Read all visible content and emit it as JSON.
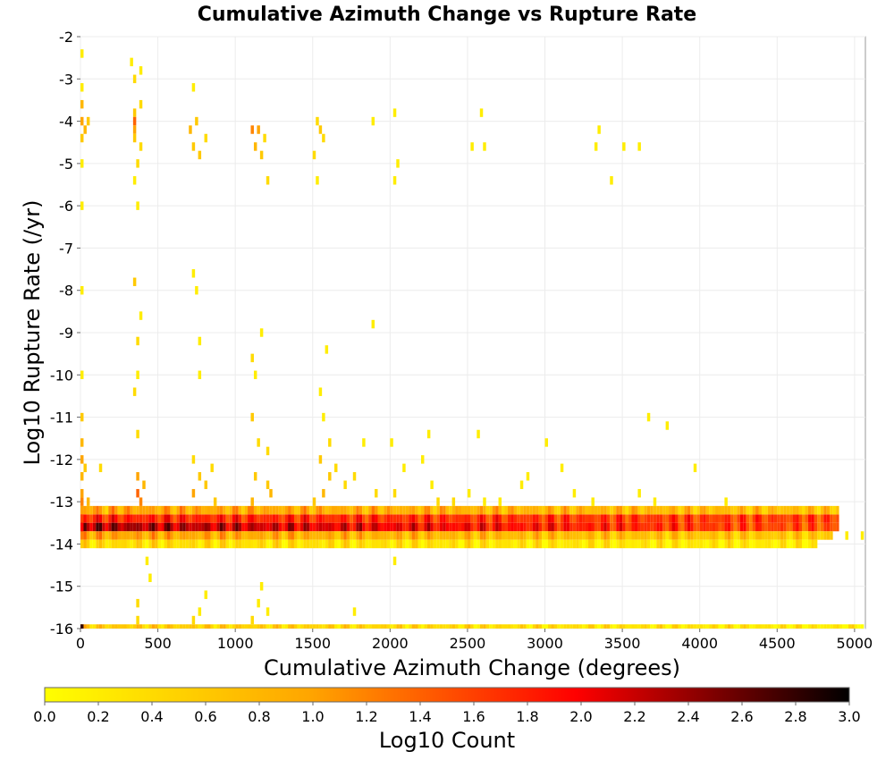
{
  "chart_data": {
    "type": "heatmap",
    "title": "Cumulative Azimuth Change vs Rupture Rate",
    "xlabel": "Cumulative Azimuth Change (degrees)",
    "ylabel": "Log10 Rupture Rate (/yr)",
    "xlim": [
      0,
      5070
    ],
    "ylim": [
      -16,
      -2
    ],
    "xticks": [
      0,
      500,
      1000,
      1500,
      2000,
      2500,
      3000,
      3500,
      4000,
      4500,
      5000
    ],
    "yticks": [
      -16,
      -15,
      -14,
      -13,
      -12,
      -11,
      -10,
      -9,
      -8,
      -7,
      -6,
      -5,
      -4,
      -3,
      -2
    ],
    "grid": true,
    "colorbar": {
      "label": "Log10 Count",
      "range": [
        0,
        3
      ],
      "ticks": [
        0.0,
        0.2,
        0.4,
        0.6,
        0.8,
        1.0,
        1.2,
        1.4,
        1.6,
        1.8,
        2.0,
        2.2,
        2.4,
        2.6,
        2.8,
        3.0
      ],
      "tick_labels": [
        "0.0",
        "0.2",
        "0.4",
        "0.6",
        "0.8",
        "1.0",
        "1.2",
        "1.4",
        "1.6",
        "1.8",
        "2.0",
        "2.2",
        "2.4",
        "2.6",
        "2.8",
        "3.0"
      ],
      "colors": [
        "#ffff00",
        "#ffa500",
        "#ff0000",
        "#000000"
      ],
      "placement": "bottom"
    },
    "bin_width_x": 20,
    "bin_height_y": 0.2,
    "bands": [
      {
        "x_start": 0,
        "x_end": 4900,
        "y": -13.4,
        "value_start": 1.8,
        "value_end": 1.6
      },
      {
        "x_start": 0,
        "x_end": 4900,
        "y": -13.6,
        "value_start": 2.4,
        "value_end": 1.5
      },
      {
        "x_start": 0,
        "x_end": 4900,
        "y": -13.2,
        "value_start": 1.0,
        "value_end": 0.7
      },
      {
        "x_start": 0,
        "x_end": 4850,
        "y": -13.8,
        "value_start": 1.0,
        "value_end": 0.6
      },
      {
        "x_start": 0,
        "x_end": 4750,
        "y": -14.0,
        "value_start": 0.4,
        "value_end": 0.2
      },
      {
        "x_start": 0,
        "x_end": 5050,
        "y": -16.0,
        "value_start": 0.6,
        "value_end": 0.2
      }
    ],
    "cells": [
      [
        0,
        -13.4,
        1.6
      ],
      [
        0,
        -13.6,
        2.0
      ],
      [
        0,
        -13.0,
        1.2
      ],
      [
        0,
        -12.8,
        1.0
      ],
      [
        0,
        -12.4,
        0.8
      ],
      [
        0,
        -16.0,
        2.8
      ],
      [
        0,
        -4.0,
        1.0
      ],
      [
        0,
        -3.6,
        0.8
      ],
      [
        0,
        -4.4,
        0.6
      ],
      [
        0,
        -3.2,
        0.2
      ],
      [
        0,
        -2.4,
        0.2
      ],
      [
        0,
        -5.0,
        0.2
      ],
      [
        0,
        -6.0,
        0.2
      ],
      [
        0,
        -8.0,
        0.2
      ],
      [
        0,
        -10.0,
        0.2
      ],
      [
        0,
        -11.0,
        0.6
      ],
      [
        0,
        -11.6,
        0.8
      ],
      [
        0,
        -12.0,
        1.0
      ],
      [
        20,
        -4.2,
        0.8
      ],
      [
        20,
        -12.2,
        0.6
      ],
      [
        40,
        -13.0,
        0.8
      ],
      [
        40,
        -4.0,
        0.6
      ],
      [
        120,
        -12.2,
        0.4
      ],
      [
        160,
        -13.2,
        0.4
      ],
      [
        320,
        -2.6,
        0.2
      ],
      [
        340,
        -3.0,
        0.4
      ],
      [
        340,
        -3.8,
        0.6
      ],
      [
        340,
        -4.0,
        1.4
      ],
      [
        340,
        -4.2,
        1.0
      ],
      [
        340,
        -4.4,
        0.6
      ],
      [
        340,
        -5.4,
        0.2
      ],
      [
        360,
        -5.0,
        0.4
      ],
      [
        360,
        -6.0,
        0.2
      ],
      [
        340,
        -7.8,
        0.6
      ],
      [
        380,
        -8.6,
        0.2
      ],
      [
        360,
        -9.2,
        0.4
      ],
      [
        360,
        -10.0,
        0.2
      ],
      [
        340,
        -10.4,
        0.4
      ],
      [
        360,
        -11.4,
        0.4
      ],
      [
        360,
        -12.4,
        1.0
      ],
      [
        360,
        -12.8,
        1.4
      ],
      [
        380,
        -13.0,
        1.2
      ],
      [
        400,
        -12.6,
        0.8
      ],
      [
        420,
        -14.4,
        0.2
      ],
      [
        440,
        -14.8,
        0.2
      ],
      [
        360,
        -15.4,
        0.4
      ],
      [
        360,
        -15.8,
        0.4
      ],
      [
        380,
        -2.8,
        0.2
      ],
      [
        380,
        -3.6,
        0.4
      ],
      [
        380,
        -4.6,
        0.4
      ],
      [
        700,
        -4.2,
        0.8
      ],
      [
        720,
        -4.6,
        0.6
      ],
      [
        740,
        -4.0,
        0.6
      ],
      [
        760,
        -4.8,
        0.6
      ],
      [
        800,
        -4.4,
        0.4
      ],
      [
        720,
        -3.2,
        0.2
      ],
      [
        720,
        -7.6,
        0.2
      ],
      [
        740,
        -8.0,
        0.2
      ],
      [
        760,
        -9.2,
        0.2
      ],
      [
        760,
        -10.0,
        0.2
      ],
      [
        720,
        -12.0,
        0.4
      ],
      [
        760,
        -12.4,
        0.6
      ],
      [
        720,
        -12.8,
        1.0
      ],
      [
        800,
        -12.6,
        0.6
      ],
      [
        840,
        -12.2,
        0.4
      ],
      [
        860,
        -13.0,
        0.6
      ],
      [
        720,
        -15.8,
        0.4
      ],
      [
        760,
        -15.6,
        0.2
      ],
      [
        800,
        -15.2,
        0.2
      ],
      [
        1100,
        -4.2,
        1.2
      ],
      [
        1140,
        -4.2,
        1.0
      ],
      [
        1120,
        -4.6,
        0.8
      ],
      [
        1160,
        -4.8,
        0.6
      ],
      [
        1180,
        -4.4,
        0.4
      ],
      [
        1200,
        -5.4,
        0.4
      ],
      [
        1160,
        -9.0,
        0.2
      ],
      [
        1100,
        -9.6,
        0.4
      ],
      [
        1120,
        -10.0,
        0.2
      ],
      [
        1100,
        -11.0,
        0.6
      ],
      [
        1140,
        -11.6,
        0.4
      ],
      [
        1200,
        -11.8,
        0.4
      ],
      [
        1120,
        -12.4,
        0.6
      ],
      [
        1200,
        -12.6,
        0.6
      ],
      [
        1220,
        -12.8,
        0.8
      ],
      [
        1100,
        -13.0,
        0.8
      ],
      [
        1160,
        -15.0,
        0.2
      ],
      [
        1140,
        -15.4,
        0.2
      ],
      [
        1200,
        -15.6,
        0.2
      ],
      [
        1100,
        -15.8,
        0.4
      ],
      [
        1520,
        -4.0,
        0.4
      ],
      [
        1540,
        -4.2,
        0.6
      ],
      [
        1560,
        -4.4,
        0.4
      ],
      [
        1500,
        -4.8,
        0.4
      ],
      [
        1520,
        -5.4,
        0.2
      ],
      [
        1580,
        -9.4,
        0.2
      ],
      [
        1540,
        -10.4,
        0.2
      ],
      [
        1560,
        -11.0,
        0.2
      ],
      [
        1600,
        -11.6,
        0.4
      ],
      [
        1540,
        -12.0,
        0.6
      ],
      [
        1600,
        -12.4,
        0.6
      ],
      [
        1560,
        -12.8,
        0.8
      ],
      [
        1640,
        -12.2,
        0.4
      ],
      [
        1700,
        -12.6,
        0.4
      ],
      [
        1500,
        -13.0,
        0.6
      ],
      [
        1880,
        -4.0,
        0.2
      ],
      [
        2020,
        -3.8,
        0.2
      ],
      [
        2040,
        -5.0,
        0.2
      ],
      [
        2020,
        -5.4,
        0.2
      ],
      [
        1880,
        -8.8,
        0.2
      ],
      [
        1760,
        -12.4,
        0.4
      ],
      [
        1820,
        -11.6,
        0.2
      ],
      [
        1900,
        -12.8,
        0.4
      ],
      [
        2000,
        -11.6,
        0.2
      ],
      [
        2020,
        -14.4,
        0.2
      ],
      [
        2020,
        -12.8,
        0.4
      ],
      [
        2080,
        -12.2,
        0.2
      ],
      [
        2200,
        -12.0,
        0.2
      ],
      [
        2240,
        -11.4,
        0.2
      ],
      [
        2260,
        -12.6,
        0.2
      ],
      [
        2300,
        -13.0,
        0.4
      ],
      [
        2520,
        -4.6,
        0.2
      ],
      [
        2580,
        -3.8,
        0.2
      ],
      [
        2600,
        -4.6,
        0.2
      ],
      [
        2560,
        -11.4,
        0.2
      ],
      [
        2500,
        -12.8,
        0.2
      ],
      [
        2600,
        -13.0,
        0.2
      ],
      [
        2880,
        -12.4,
        0.2
      ],
      [
        2840,
        -12.6,
        0.2
      ],
      [
        3000,
        -11.6,
        0.2
      ],
      [
        3100,
        -12.2,
        0.2
      ],
      [
        3180,
        -12.8,
        0.2
      ],
      [
        3300,
        -13.0,
        0.2
      ],
      [
        3320,
        -4.6,
        0.2
      ],
      [
        3340,
        -4.2,
        0.2
      ],
      [
        3420,
        -5.4,
        0.2
      ],
      [
        3500,
        -4.6,
        0.2
      ],
      [
        3600,
        -4.6,
        0.2
      ],
      [
        3660,
        -11.0,
        0.2
      ],
      [
        3700,
        -13.0,
        0.2
      ],
      [
        3780,
        -11.2,
        0.2
      ],
      [
        3960,
        -12.2,
        0.2
      ],
      [
        4160,
        -13.0,
        0.2
      ],
      [
        4940,
        -13.8,
        0.2
      ],
      [
        5040,
        -13.8,
        0.2
      ],
      [
        1760,
        -15.6,
        0.2
      ],
      [
        2400,
        -13.0,
        0.4
      ],
      [
        2700,
        -13.0,
        0.2
      ],
      [
        3600,
        -12.8,
        0.2
      ]
    ]
  }
}
